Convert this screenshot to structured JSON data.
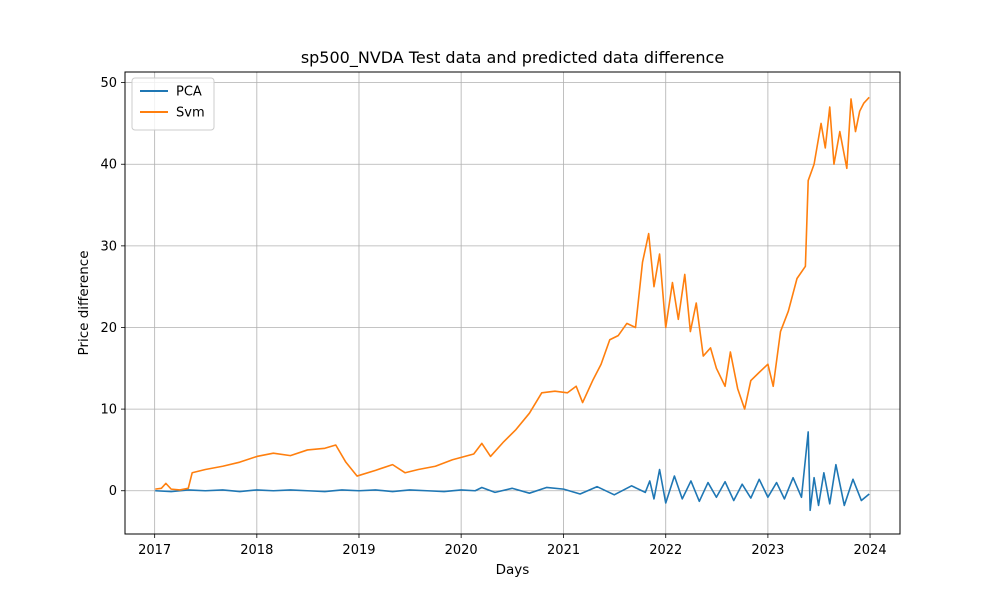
{
  "chart_data": {
    "type": "line",
    "title": "sp500_NVDA Test data and predicted data difference",
    "xlabel": "Days",
    "ylabel": "Price difference",
    "xlim": [
      "2016-09-17",
      "2024-04-17"
    ],
    "ylim": [
      -5.3,
      51.3
    ],
    "x_ticks": [
      "2017",
      "2018",
      "2019",
      "2020",
      "2021",
      "2022",
      "2023",
      "2024"
    ],
    "y_ticks": [
      0,
      10,
      20,
      30,
      40,
      50
    ],
    "grid": true,
    "legend_position": "top-left",
    "series": [
      {
        "name": "PCA",
        "color": "#1f77b4",
        "x": [
          "2017-01-03",
          "2017-03-01",
          "2017-05-01",
          "2017-07-01",
          "2017-09-01",
          "2017-11-01",
          "2018-01-01",
          "2018-03-01",
          "2018-05-01",
          "2018-07-01",
          "2018-09-01",
          "2018-11-01",
          "2019-01-01",
          "2019-03-01",
          "2019-05-01",
          "2019-07-01",
          "2019-09-01",
          "2019-11-01",
          "2020-01-01",
          "2020-02-20",
          "2020-03-15",
          "2020-05-01",
          "2020-07-01",
          "2020-09-01",
          "2020-11-01",
          "2021-01-01",
          "2021-03-01",
          "2021-05-01",
          "2021-07-01",
          "2021-09-01",
          "2021-10-20",
          "2021-11-05",
          "2021-11-20",
          "2021-12-10",
          "2022-01-01",
          "2022-02-01",
          "2022-03-01",
          "2022-04-01",
          "2022-05-01",
          "2022-06-01",
          "2022-07-01",
          "2022-08-01",
          "2022-09-01",
          "2022-10-01",
          "2022-11-01",
          "2022-12-01",
          "2023-01-01",
          "2023-02-01",
          "2023-03-01",
          "2023-04-01",
          "2023-05-01",
          "2023-05-25",
          "2023-06-01",
          "2023-06-15",
          "2023-07-01",
          "2023-07-20",
          "2023-08-10",
          "2023-09-01",
          "2023-10-01",
          "2023-11-01",
          "2023-12-01",
          "2023-12-29"
        ],
        "values": [
          0.0,
          -0.1,
          0.1,
          0.0,
          0.1,
          -0.1,
          0.1,
          0.0,
          0.1,
          0.0,
          -0.1,
          0.1,
          0.0,
          0.1,
          -0.1,
          0.1,
          0.0,
          -0.1,
          0.1,
          0.0,
          0.4,
          -0.2,
          0.3,
          -0.3,
          0.4,
          0.2,
          -0.4,
          0.5,
          -0.5,
          0.6,
          -0.2,
          1.2,
          -1.0,
          2.6,
          -1.5,
          1.8,
          -1.0,
          1.2,
          -1.3,
          1.0,
          -0.8,
          1.1,
          -1.2,
          0.8,
          -0.9,
          1.4,
          -0.8,
          1.0,
          -1.0,
          1.6,
          -0.8,
          7.2,
          -2.4,
          1.6,
          -1.8,
          2.2,
          -1.6,
          3.2,
          -1.8,
          1.4,
          -1.2,
          -0.4
        ]
      },
      {
        "name": "Svm",
        "color": "#ff7f0e",
        "x": [
          "2017-01-03",
          "2017-01-25",
          "2017-02-10",
          "2017-03-01",
          "2017-04-01",
          "2017-05-01",
          "2017-05-15",
          "2017-07-01",
          "2017-09-01",
          "2017-11-01",
          "2018-01-01",
          "2018-03-01",
          "2018-05-01",
          "2018-07-01",
          "2018-09-01",
          "2018-10-10",
          "2018-11-15",
          "2018-12-25",
          "2019-03-01",
          "2019-05-01",
          "2019-06-15",
          "2019-08-01",
          "2019-10-01",
          "2019-12-01",
          "2020-02-15",
          "2020-03-15",
          "2020-04-15",
          "2020-06-01",
          "2020-07-15",
          "2020-09-01",
          "2020-10-15",
          "2020-12-01",
          "2021-01-15",
          "2021-02-15",
          "2021-03-10",
          "2021-04-15",
          "2021-05-15",
          "2021-06-15",
          "2021-07-15",
          "2021-08-15",
          "2021-09-15",
          "2021-10-10",
          "2021-11-01",
          "2021-11-20",
          "2021-12-10",
          "2022-01-01",
          "2022-01-25",
          "2022-02-15",
          "2022-03-10",
          "2022-03-30",
          "2022-04-20",
          "2022-05-15",
          "2022-06-10",
          "2022-07-01",
          "2022-08-01",
          "2022-08-20",
          "2022-09-15",
          "2022-10-10",
          "2022-11-01",
          "2022-12-01",
          "2023-01-01",
          "2023-01-20",
          "2023-02-15",
          "2023-03-15",
          "2023-04-15",
          "2023-05-15",
          "2023-05-25",
          "2023-06-15",
          "2023-07-10",
          "2023-07-25",
          "2023-08-10",
          "2023-08-25",
          "2023-09-15",
          "2023-10-10",
          "2023-10-25",
          "2023-11-10",
          "2023-11-25",
          "2023-12-10",
          "2023-12-29"
        ],
        "values": [
          0.2,
          0.3,
          0.9,
          0.2,
          0.1,
          0.3,
          2.2,
          2.6,
          3.0,
          3.5,
          4.2,
          4.6,
          4.3,
          5.0,
          5.2,
          5.6,
          3.5,
          1.8,
          2.5,
          3.2,
          2.2,
          2.6,
          3.0,
          3.8,
          4.5,
          5.8,
          4.2,
          6.0,
          7.5,
          9.5,
          12.0,
          12.2,
          12.0,
          12.8,
          10.8,
          13.5,
          15.5,
          18.5,
          19.0,
          20.5,
          20.0,
          28.0,
          31.5,
          25.0,
          29.0,
          20.0,
          25.5,
          21.0,
          26.5,
          19.5,
          23.0,
          16.5,
          17.5,
          15.0,
          12.8,
          17.0,
          12.5,
          10.0,
          13.5,
          14.5,
          15.5,
          12.8,
          19.5,
          22.0,
          26.0,
          27.5,
          38.0,
          40.0,
          45.0,
          42.0,
          47.0,
          40.0,
          44.0,
          39.5,
          48.0,
          44.0,
          46.5,
          47.5,
          48.2
        ]
      }
    ]
  }
}
